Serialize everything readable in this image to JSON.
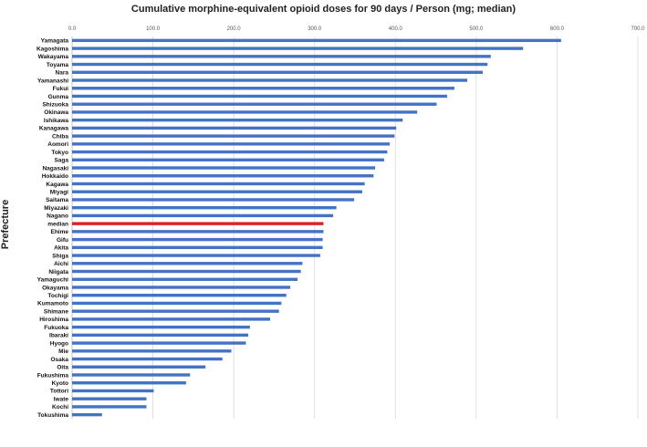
{
  "chart_data": {
    "type": "bar",
    "orientation": "horizontal",
    "title": "Cumulative morphine-equivalent opioid doses for 90 days / Person (mg; median)",
    "xlabel": "",
    "ylabel": "Prefecture",
    "xlim": [
      0,
      700
    ],
    "x_ticks": [
      "0.0",
      "100.0",
      "200.0",
      "300.0",
      "400.0",
      "500.0",
      "600.0",
      "700.0"
    ],
    "grid": "vertical",
    "bar_color": "#4472C4",
    "highlight_color": "#E02020",
    "highlight_category": "median",
    "categories": [
      "Yamagata",
      "Kagoshima",
      "Wakayama",
      "Toyama",
      "Nara",
      "Yamanashi",
      "Fukui",
      "Gunma",
      "Shizuoka",
      "Okinawa",
      "Ishikawa",
      "Kanagawa",
      "Chiba",
      "Aomori",
      "Tokyo",
      "Saga",
      "Nagasaki",
      "Hokkaido",
      "Kagawa",
      "Miyagi",
      "Saitama",
      "Miyazaki",
      "Nagano",
      "median",
      "Ehime",
      "Gifu",
      "Akita",
      "Shiga",
      "Aichi",
      "Niigata",
      "Yamaguchi",
      "Okayama",
      "Tochigi",
      "Kumamoto",
      "Shimane",
      "Hiroshima",
      "Fukuoka",
      "Ibaraki",
      "Hyogo",
      "Mie",
      "Osaka",
      "Oita",
      "Fukushima",
      "Kyoto",
      "Tottori",
      "Iwate",
      "Kochi",
      "Tokushima"
    ],
    "values": [
      605,
      558,
      518,
      514,
      508,
      489,
      473,
      464,
      451,
      427,
      409,
      401,
      399,
      393,
      390,
      386,
      375,
      373,
      362,
      359,
      349,
      327,
      323,
      311,
      311,
      310,
      310,
      307,
      285,
      283,
      279,
      270,
      265,
      259,
      256,
      245,
      220,
      218,
      215,
      197,
      186,
      165,
      146,
      141,
      101,
      92,
      92,
      37
    ]
  }
}
